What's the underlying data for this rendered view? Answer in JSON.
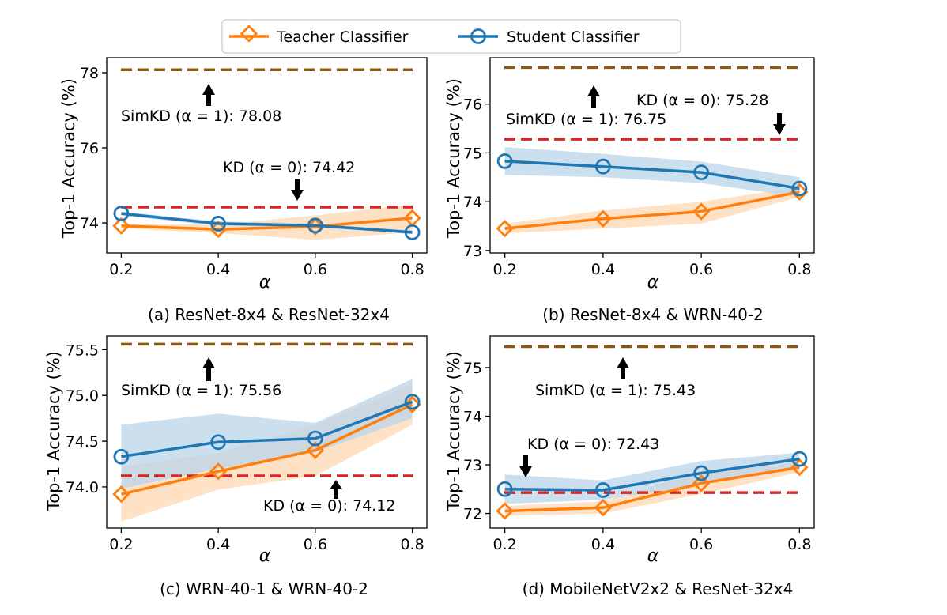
{
  "legend": {
    "teacher_label": "Teacher Classifier",
    "student_label": "Student Classifier"
  },
  "colors": {
    "teacher": "#ff7f0e",
    "student": "#1f77b4",
    "teacher_band": "#ffd7b2",
    "student_band": "#b9d4ea",
    "simkd_line": "#8c5a10",
    "kd_line": "#d62728"
  },
  "chart_data": [
    {
      "type": "line",
      "caption": "(a) ResNet-8x4 & ResNet-32x4",
      "xlabel": "α",
      "ylabel": "Top-1 Accuracy (%)",
      "x": [
        0.2,
        0.4,
        0.6,
        0.8
      ],
      "xticks": [
        "0.2",
        "0.4",
        "0.6",
        "0.8"
      ],
      "yticks": [
        "74",
        "76",
        "78"
      ],
      "ytick_values": [
        74,
        76,
        78
      ],
      "xlim": [
        0.17,
        0.83
      ],
      "ylim": [
        73.2,
        78.4
      ],
      "series": [
        {
          "name": "Teacher Classifier",
          "values": [
            73.92,
            73.83,
            73.9,
            74.13
          ],
          "band_low": [
            73.86,
            73.73,
            73.55,
            73.75
          ],
          "band_high": [
            73.98,
            73.95,
            74.2,
            74.5
          ]
        },
        {
          "name": "Student Classifier",
          "values": [
            74.25,
            73.98,
            73.93,
            73.75
          ],
          "band_low": [
            74.2,
            73.92,
            73.88,
            73.7
          ],
          "band_high": [
            74.3,
            74.04,
            73.98,
            73.8
          ]
        }
      ],
      "simkd": {
        "value": 78.08,
        "label": "SimKD (α = 1): 78.08"
      },
      "kd": {
        "value": 74.42,
        "label": "KD (α = 0): 74.42"
      }
    },
    {
      "type": "line",
      "caption": "(b) ResNet-8x4 & WRN-40-2",
      "xlabel": "α",
      "ylabel": "Top-1 Accuracy (%)",
      "x": [
        0.2,
        0.4,
        0.6,
        0.8
      ],
      "xticks": [
        "0.2",
        "0.4",
        "0.6",
        "0.8"
      ],
      "yticks": [
        "73",
        "74",
        "75",
        "76"
      ],
      "ytick_values": [
        73,
        74,
        75,
        76
      ],
      "xlim": [
        0.17,
        0.83
      ],
      "ylim": [
        72.95,
        76.95
      ],
      "series": [
        {
          "name": "Teacher Classifier",
          "values": [
            73.45,
            73.65,
            73.8,
            74.2
          ],
          "band_low": [
            73.35,
            73.45,
            73.55,
            74.1
          ],
          "band_high": [
            73.55,
            73.82,
            74.0,
            74.3
          ]
        },
        {
          "name": "Student Classifier",
          "values": [
            74.83,
            74.72,
            74.6,
            74.27
          ],
          "band_low": [
            74.55,
            74.5,
            74.38,
            74.1
          ],
          "band_high": [
            75.12,
            74.98,
            74.82,
            74.5
          ]
        }
      ],
      "simkd": {
        "value": 76.75,
        "label": "SimKD (α = 1): 76.75"
      },
      "kd": {
        "value": 75.28,
        "label": "KD (α = 0): 75.28"
      }
    },
    {
      "type": "line",
      "caption": "(c) WRN-40-1 & WRN-40-2",
      "xlabel": "α",
      "ylabel": "Top-1 Accuracy (%)",
      "x": [
        0.2,
        0.4,
        0.6,
        0.8
      ],
      "xticks": [
        "0.2",
        "0.4",
        "0.6",
        "0.8"
      ],
      "yticks": [
        "74.0",
        "74.5",
        "75.0",
        "75.5"
      ],
      "ytick_values": [
        74.0,
        74.5,
        75.0,
        75.5
      ],
      "xlim": [
        0.17,
        0.83
      ],
      "ylim": [
        73.55,
        75.65
      ],
      "series": [
        {
          "name": "Teacher Classifier",
          "values": [
            73.92,
            74.17,
            74.4,
            74.9
          ],
          "band_low": [
            73.62,
            73.97,
            74.12,
            74.68
          ],
          "band_high": [
            74.22,
            74.37,
            74.68,
            75.12
          ]
        },
        {
          "name": "Student Classifier",
          "values": [
            74.33,
            74.49,
            74.53,
            74.93
          ],
          "band_low": [
            73.98,
            74.2,
            74.38,
            74.75
          ],
          "band_high": [
            74.68,
            74.8,
            74.7,
            75.18
          ]
        }
      ],
      "simkd": {
        "value": 75.56,
        "label": "SimKD (α = 1): 75.56"
      },
      "kd": {
        "value": 74.12,
        "label": "KD (α = 0): 74.12"
      }
    },
    {
      "type": "line",
      "caption": "(d) MobileNetV2x2 & ResNet-32x4",
      "xlabel": "α",
      "ylabel": "Top-1 Accuracy (%)",
      "x": [
        0.2,
        0.4,
        0.6,
        0.8
      ],
      "xticks": [
        "0.2",
        "0.4",
        "0.6",
        "0.8"
      ],
      "yticks": [
        "72",
        "73",
        "74",
        "75"
      ],
      "ytick_values": [
        72,
        73,
        74,
        75
      ],
      "xlim": [
        0.17,
        0.83
      ],
      "ylim": [
        71.7,
        75.65
      ],
      "series": [
        {
          "name": "Teacher Classifier",
          "values": [
            72.05,
            72.12,
            72.62,
            72.95
          ],
          "band_low": [
            71.95,
            72.0,
            72.4,
            72.85
          ],
          "band_high": [
            72.15,
            72.25,
            72.85,
            73.05
          ]
        },
        {
          "name": "Student Classifier",
          "values": [
            72.5,
            72.48,
            72.83,
            73.12
          ],
          "band_low": [
            72.2,
            72.28,
            72.6,
            72.98
          ],
          "band_high": [
            72.8,
            72.68,
            73.08,
            73.25
          ]
        }
      ],
      "simkd": {
        "value": 75.43,
        "label": "SimKD (α = 1): 75.43"
      },
      "kd": {
        "value": 72.43,
        "label": "KD (α = 0): 72.43"
      }
    }
  ]
}
